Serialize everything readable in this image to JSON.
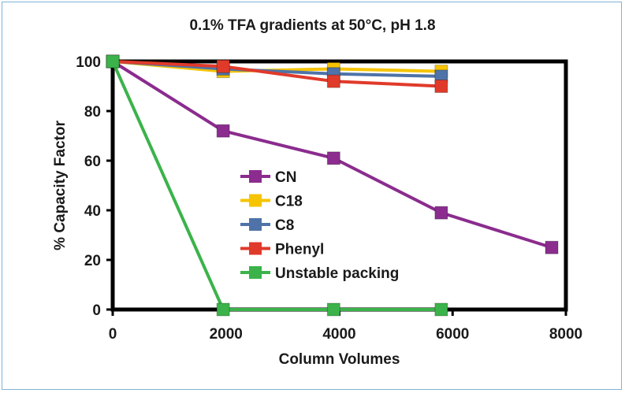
{
  "chart_data": {
    "type": "line",
    "title": "0.1% TFA gradients at 50°C, pH 1.8",
    "xlabel": "Column Volumes",
    "ylabel": "% Capacity Factor",
    "xlim": [
      0,
      8000
    ],
    "ylim": [
      0,
      100
    ],
    "xticks": [
      0,
      2000,
      4000,
      6000,
      8000
    ],
    "yticks": [
      0,
      20,
      40,
      60,
      80,
      100
    ],
    "grid": false,
    "legend_position": "center-left",
    "series": [
      {
        "name": "CN",
        "color": "#8b2c8e",
        "x": [
          0,
          1950,
          3900,
          5800,
          7750
        ],
        "y": [
          100,
          72,
          61,
          39,
          25
        ]
      },
      {
        "name": "C18",
        "color": "#f6c400",
        "x": [
          0,
          1950,
          3900,
          5800
        ],
        "y": [
          100,
          96,
          97,
          96
        ]
      },
      {
        "name": "C8",
        "color": "#4f73a8",
        "x": [
          0,
          1950,
          3900,
          5800
        ],
        "y": [
          100,
          97,
          95,
          94
        ]
      },
      {
        "name": "Phenyl",
        "color": "#e03a2a",
        "x": [
          0,
          1950,
          3900,
          5800
        ],
        "y": [
          100,
          98,
          92,
          90
        ]
      },
      {
        "name": "Unstable packing",
        "color": "#3bb34a",
        "x": [
          0,
          1950,
          3900,
          5800
        ],
        "y": [
          100,
          0,
          0,
          0
        ]
      }
    ]
  }
}
